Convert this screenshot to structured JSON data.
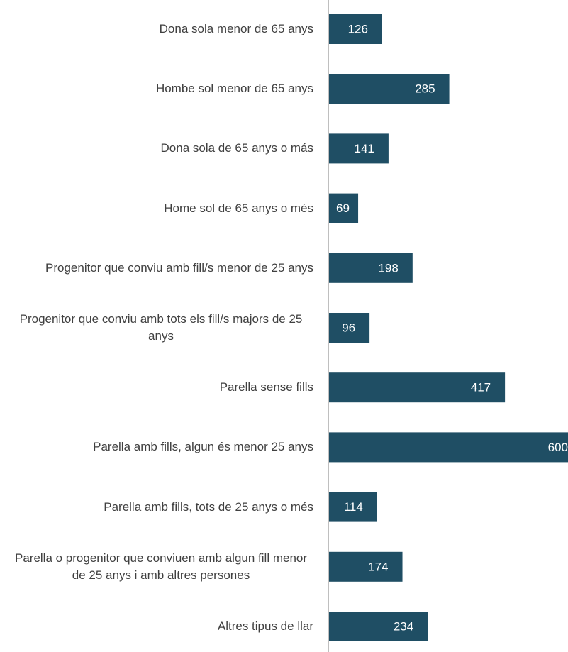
{
  "chart_data": {
    "type": "bar",
    "orientation": "horizontal",
    "color": "#1f4e64",
    "categories": [
      "Dona sola menor de 65 anys",
      "Hombe sol menor de 65 anys",
      "Dona sola de 65 anys o más",
      "Home sol de 65 anys o més",
      "Progenitor que conviu amb fill/s menor de 25 anys",
      "Progenitor que conviu amb tots els fill/s majors de 25 anys",
      "Parella sense fills",
      "Parella amb fills, algun és menor 25 anys",
      "Parella amb fills, tots de 25 anys o més",
      "Parella o progenitor que conviuen amb algun fill menor de 25 anys i amb altres persones",
      "Altres tipus de llar"
    ],
    "values": [
      126,
      285,
      141,
      69,
      198,
      96,
      417,
      600,
      114,
      174,
      234
    ]
  }
}
